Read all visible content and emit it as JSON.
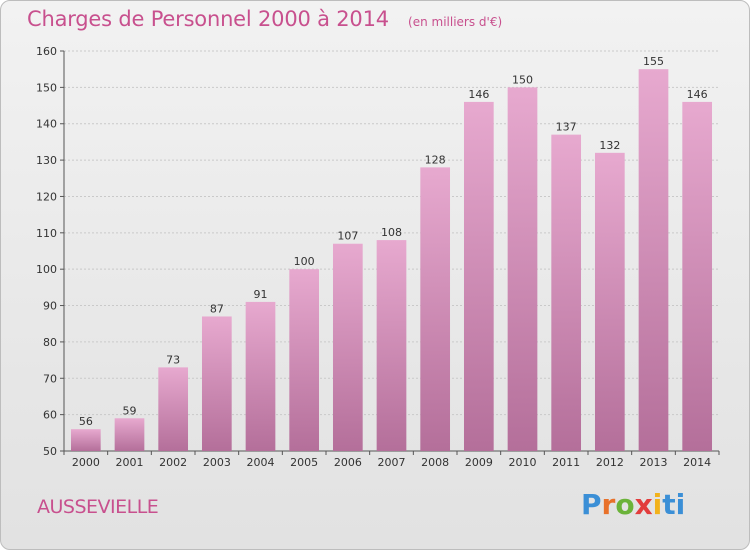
{
  "header": {
    "title": "Charges de Personnel 2000 à 2014",
    "subtitle": "(en milliers d'€)"
  },
  "footer": {
    "place": "AUSSEVIELLE",
    "logo": [
      "P",
      "r",
      "o",
      "x",
      "i",
      "ti"
    ]
  },
  "colors": {
    "accent": "#c8508e",
    "bar_top": "#e7a9cf",
    "bar_bottom": "#b46f9a"
  },
  "chart_data": {
    "type": "bar",
    "categories": [
      "2000",
      "2001",
      "2002",
      "2003",
      "2004",
      "2005",
      "2006",
      "2007",
      "2008",
      "2009",
      "2010",
      "2011",
      "2012",
      "2013",
      "2014"
    ],
    "values": [
      56,
      59,
      73,
      87,
      91,
      100,
      107,
      108,
      128,
      146,
      150,
      137,
      132,
      155,
      146
    ],
    "title": "Charges de Personnel 2000 à 2014",
    "subtitle": "(en milliers d'€)",
    "xlabel": "",
    "ylabel": "",
    "ylim": [
      50,
      160
    ],
    "yticks": [
      50,
      60,
      70,
      80,
      90,
      100,
      110,
      120,
      130,
      140,
      150,
      160
    ],
    "grid": true,
    "legend": "none"
  }
}
